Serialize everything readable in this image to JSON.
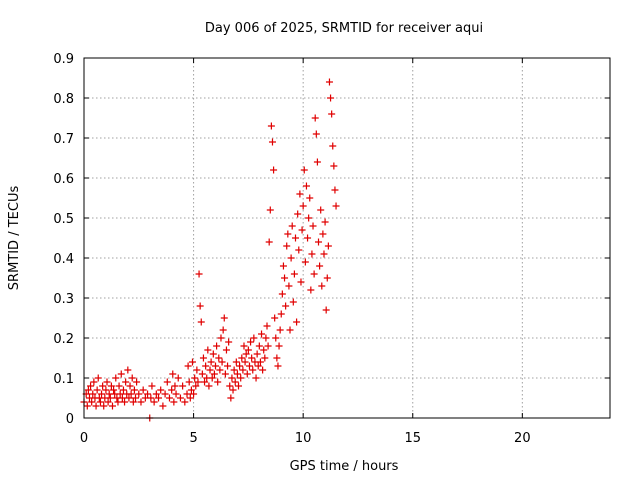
{
  "chart_data": {
    "type": "scatter",
    "title": "Day 006 of 2025, SRMTID for receiver aqui",
    "xlabel": "GPS time / hours",
    "ylabel": "SRMTID / TECUs",
    "xlim": [
      0,
      24
    ],
    "ylim": [
      0,
      0.9
    ],
    "xticks": [
      0,
      5,
      10,
      15,
      20
    ],
    "xtick_labels": [
      "0",
      "5",
      "10",
      "15",
      "20"
    ],
    "yticks": [
      0,
      0.1,
      0.2,
      0.3,
      0.4,
      0.5,
      0.6,
      0.7,
      0.8,
      0.9
    ],
    "ytick_labels": [
      "0",
      "0.1",
      "0.2",
      "0.3",
      "0.4",
      "0.5",
      "0.6",
      "0.7",
      "0.8",
      "0.9"
    ],
    "grid": true,
    "marker": "plus",
    "color": "#e00000",
    "series": [
      {
        "name": "SRMTID",
        "points": [
          [
            0.0,
            0.04
          ],
          [
            0.1,
            0.06
          ],
          [
            0.15,
            0.03
          ],
          [
            0.2,
            0.07
          ],
          [
            0.25,
            0.05
          ],
          [
            0.3,
            0.08
          ],
          [
            0.35,
            0.04
          ],
          [
            0.4,
            0.06
          ],
          [
            0.45,
            0.09
          ],
          [
            0.5,
            0.05
          ],
          [
            0.55,
            0.03
          ],
          [
            0.6,
            0.07
          ],
          [
            0.65,
            0.1
          ],
          [
            0.7,
            0.05
          ],
          [
            0.75,
            0.04
          ],
          [
            0.8,
            0.06
          ],
          [
            0.85,
            0.08
          ],
          [
            0.9,
            0.03
          ],
          [
            0.95,
            0.05
          ],
          [
            1.0,
            0.07
          ],
          [
            1.05,
            0.09
          ],
          [
            1.1,
            0.04
          ],
          [
            1.15,
            0.06
          ],
          [
            1.2,
            0.05
          ],
          [
            1.25,
            0.08
          ],
          [
            1.3,
            0.03
          ],
          [
            1.35,
            0.07
          ],
          [
            1.4,
            0.06
          ],
          [
            1.45,
            0.1
          ],
          [
            1.5,
            0.05
          ],
          [
            1.55,
            0.04
          ],
          [
            1.6,
            0.08
          ],
          [
            1.65,
            0.06
          ],
          [
            1.7,
            0.11
          ],
          [
            1.75,
            0.05
          ],
          [
            1.8,
            0.07
          ],
          [
            1.85,
            0.04
          ],
          [
            1.9,
            0.09
          ],
          [
            1.95,
            0.06
          ],
          [
            2.0,
            0.12
          ],
          [
            2.05,
            0.05
          ],
          [
            2.1,
            0.08
          ],
          [
            2.15,
            0.06
          ],
          [
            2.2,
            0.1
          ],
          [
            2.25,
            0.04
          ],
          [
            2.3,
            0.07
          ],
          [
            2.35,
            0.05
          ],
          [
            2.4,
            0.09
          ],
          [
            2.5,
            0.06
          ],
          [
            2.6,
            0.04
          ],
          [
            2.7,
            0.07
          ],
          [
            2.8,
            0.05
          ],
          [
            2.9,
            0.06
          ],
          [
            3.0,
            0.0
          ],
          [
            3.05,
            0.05
          ],
          [
            3.1,
            0.08
          ],
          [
            3.2,
            0.04
          ],
          [
            3.3,
            0.06
          ],
          [
            3.4,
            0.05
          ],
          [
            3.5,
            0.07
          ],
          [
            3.6,
            0.03
          ],
          [
            3.7,
            0.06
          ],
          [
            3.8,
            0.09
          ],
          [
            3.9,
            0.05
          ],
          [
            4.0,
            0.07
          ],
          [
            4.05,
            0.11
          ],
          [
            4.1,
            0.04
          ],
          [
            4.15,
            0.08
          ],
          [
            4.2,
            0.06
          ],
          [
            4.3,
            0.1
          ],
          [
            4.4,
            0.05
          ],
          [
            4.5,
            0.08
          ],
          [
            4.6,
            0.04
          ],
          [
            4.7,
            0.06
          ],
          [
            4.75,
            0.13
          ],
          [
            4.8,
            0.09
          ],
          [
            4.85,
            0.05
          ],
          [
            4.9,
            0.07
          ],
          [
            4.95,
            0.14
          ],
          [
            5.0,
            0.06
          ],
          [
            5.05,
            0.1
          ],
          [
            5.1,
            0.08
          ],
          [
            5.15,
            0.12
          ],
          [
            5.2,
            0.09
          ],
          [
            5.25,
            0.36
          ],
          [
            5.3,
            0.28
          ],
          [
            5.35,
            0.24
          ],
          [
            5.4,
            0.11
          ],
          [
            5.45,
            0.15
          ],
          [
            5.5,
            0.09
          ],
          [
            5.55,
            0.13
          ],
          [
            5.6,
            0.1
          ],
          [
            5.65,
            0.17
          ],
          [
            5.7,
            0.08
          ],
          [
            5.75,
            0.12
          ],
          [
            5.8,
            0.14
          ],
          [
            5.85,
            0.1
          ],
          [
            5.9,
            0.16
          ],
          [
            5.95,
            0.11
          ],
          [
            6.0,
            0.13
          ],
          [
            6.05,
            0.18
          ],
          [
            6.1,
            0.09
          ],
          [
            6.15,
            0.15
          ],
          [
            6.2,
            0.12
          ],
          [
            6.25,
            0.2
          ],
          [
            6.3,
            0.14
          ],
          [
            6.35,
            0.22
          ],
          [
            6.4,
            0.25
          ],
          [
            6.45,
            0.11
          ],
          [
            6.5,
            0.17
          ],
          [
            6.55,
            0.13
          ],
          [
            6.6,
            0.19
          ],
          [
            6.65,
            0.08
          ],
          [
            6.7,
            0.05
          ],
          [
            6.75,
            0.1
          ],
          [
            6.8,
            0.07
          ],
          [
            6.85,
            0.12
          ],
          [
            6.9,
            0.09
          ],
          [
            6.95,
            0.14
          ],
          [
            7.0,
            0.11
          ],
          [
            7.05,
            0.08
          ],
          [
            7.1,
            0.13
          ],
          [
            7.15,
            0.1
          ],
          [
            7.2,
            0.15
          ],
          [
            7.25,
            0.12
          ],
          [
            7.3,
            0.18
          ],
          [
            7.35,
            0.14
          ],
          [
            7.4,
            0.16
          ],
          [
            7.45,
            0.11
          ],
          [
            7.5,
            0.17
          ],
          [
            7.55,
            0.13
          ],
          [
            7.6,
            0.19
          ],
          [
            7.65,
            0.15
          ],
          [
            7.7,
            0.12
          ],
          [
            7.75,
            0.2
          ],
          [
            7.8,
            0.14
          ],
          [
            7.85,
            0.1
          ],
          [
            7.9,
            0.16
          ],
          [
            7.95,
            0.13
          ],
          [
            8.0,
            0.18
          ],
          [
            8.05,
            0.14
          ],
          [
            8.1,
            0.21
          ],
          [
            8.15,
            0.12
          ],
          [
            8.2,
            0.17
          ],
          [
            8.25,
            0.15
          ],
          [
            8.3,
            0.2
          ],
          [
            8.35,
            0.23
          ],
          [
            8.4,
            0.18
          ],
          [
            8.45,
            0.44
          ],
          [
            8.5,
            0.52
          ],
          [
            8.55,
            0.73
          ],
          [
            8.6,
            0.69
          ],
          [
            8.65,
            0.62
          ],
          [
            8.7,
            0.25
          ],
          [
            8.75,
            0.2
          ],
          [
            8.8,
            0.15
          ],
          [
            8.85,
            0.13
          ],
          [
            8.9,
            0.18
          ],
          [
            8.95,
            0.22
          ],
          [
            9.0,
            0.26
          ],
          [
            9.05,
            0.31
          ],
          [
            9.1,
            0.38
          ],
          [
            9.15,
            0.35
          ],
          [
            9.2,
            0.28
          ],
          [
            9.25,
            0.43
          ],
          [
            9.3,
            0.46
          ],
          [
            9.35,
            0.33
          ],
          [
            9.4,
            0.22
          ],
          [
            9.45,
            0.4
          ],
          [
            9.5,
            0.48
          ],
          [
            9.55,
            0.29
          ],
          [
            9.6,
            0.36
          ],
          [
            9.65,
            0.45
          ],
          [
            9.7,
            0.24
          ],
          [
            9.75,
            0.51
          ],
          [
            9.8,
            0.42
          ],
          [
            9.85,
            0.56
          ],
          [
            9.9,
            0.34
          ],
          [
            9.95,
            0.47
          ],
          [
            10.0,
            0.53
          ],
          [
            10.05,
            0.62
          ],
          [
            10.1,
            0.39
          ],
          [
            10.15,
            0.58
          ],
          [
            10.2,
            0.45
          ],
          [
            10.25,
            0.5
          ],
          [
            10.3,
            0.55
          ],
          [
            10.35,
            0.32
          ],
          [
            10.4,
            0.41
          ],
          [
            10.45,
            0.48
          ],
          [
            10.5,
            0.36
          ],
          [
            10.55,
            0.75
          ],
          [
            10.6,
            0.71
          ],
          [
            10.65,
            0.64
          ],
          [
            10.7,
            0.44
          ],
          [
            10.75,
            0.38
          ],
          [
            10.8,
            0.52
          ],
          [
            10.85,
            0.33
          ],
          [
            10.9,
            0.46
          ],
          [
            10.95,
            0.41
          ],
          [
            11.0,
            0.49
          ],
          [
            11.05,
            0.27
          ],
          [
            11.1,
            0.35
          ],
          [
            11.15,
            0.43
          ],
          [
            11.2,
            0.84
          ],
          [
            11.25,
            0.8
          ],
          [
            11.3,
            0.76
          ],
          [
            11.35,
            0.68
          ],
          [
            11.4,
            0.63
          ],
          [
            11.45,
            0.57
          ],
          [
            11.5,
            0.53
          ]
        ]
      }
    ]
  }
}
